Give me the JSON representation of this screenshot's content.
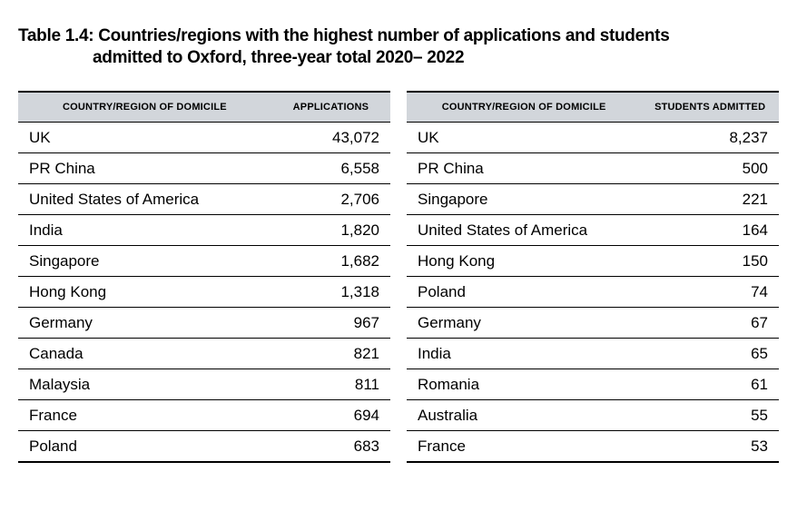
{
  "title_line1": "Table 1.4: Countries/regions with the highest number of applications and students",
  "title_line2": "admitted to Oxford, three-year total 2020– 2022",
  "left_table": {
    "type": "table",
    "header_bg": "#d2d6db",
    "border_color": "#000000",
    "text_color": "#000000",
    "header_fontsize": 11,
    "body_fontsize": 17,
    "columns": [
      "COUNTRY/REGION OF DOMICILE",
      "APPLICATIONS"
    ],
    "col_align": [
      "left",
      "right"
    ],
    "rows": [
      [
        "UK",
        "43,072"
      ],
      [
        "PR China",
        "6,558"
      ],
      [
        "United States of America",
        "2,706"
      ],
      [
        "India",
        "1,820"
      ],
      [
        "Singapore",
        "1,682"
      ],
      [
        "Hong Kong",
        "1,318"
      ],
      [
        "Germany",
        "967"
      ],
      [
        "Canada",
        "821"
      ],
      [
        "Malaysia",
        "811"
      ],
      [
        "France",
        "694"
      ],
      [
        "Poland",
        "683"
      ]
    ]
  },
  "right_table": {
    "type": "table",
    "header_bg": "#d2d6db",
    "border_color": "#000000",
    "text_color": "#000000",
    "header_fontsize": 11,
    "body_fontsize": 17,
    "columns": [
      "COUNTRY/REGION OF DOMICILE",
      "STUDENTS ADMITTED"
    ],
    "col_align": [
      "left",
      "right"
    ],
    "rows": [
      [
        "UK",
        "8,237"
      ],
      [
        "PR China",
        "500"
      ],
      [
        "Singapore",
        "221"
      ],
      [
        "United States of America",
        "164"
      ],
      [
        "Hong Kong",
        "150"
      ],
      [
        "Poland",
        "74"
      ],
      [
        "Germany",
        "67"
      ],
      [
        "India",
        "65"
      ],
      [
        "Romania",
        "61"
      ],
      [
        "Australia",
        "55"
      ],
      [
        "France",
        "53"
      ]
    ]
  }
}
